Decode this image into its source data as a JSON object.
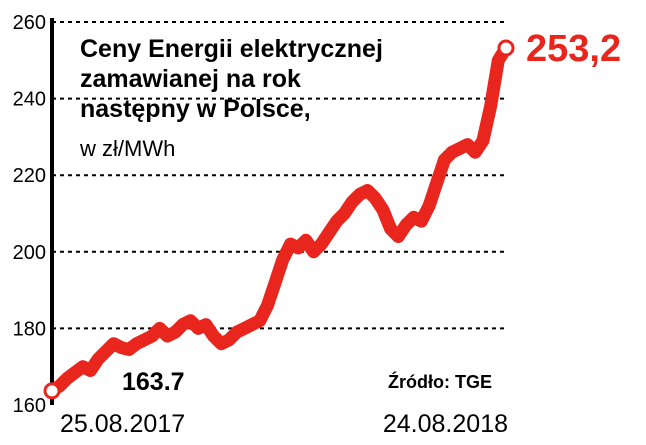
{
  "title_lines": [
    "Ceny Energii elektrycznej",
    "zamawianej na rok",
    "następny w Polsce,"
  ],
  "unit": "w zł/MWh",
  "source": "Źródło: TGE",
  "first_value_label": "163.7",
  "last_value_label": "253,2",
  "colors": {
    "line": "#e8261e",
    "axis": "#000000",
    "grid": "#000000",
    "text": "#000000"
  },
  "chart_data": {
    "type": "line",
    "title": "Ceny Energii elektrycznej zamawianej na rok następny w Polsce, w zł/MWh",
    "xlabel": "",
    "ylabel": "w zł/MWh",
    "ylim": [
      160,
      260
    ],
    "yticks": [
      160,
      180,
      200,
      220,
      240,
      260
    ],
    "xtick_labels": [
      "25.08.2017",
      "24.08.2018"
    ],
    "grid": true,
    "series": [
      {
        "values": [
          163.7,
          165,
          167,
          168.5,
          170,
          169,
          172,
          174,
          176,
          175,
          174.5,
          176,
          177,
          178,
          180,
          178,
          179,
          181,
          182,
          180,
          181,
          178,
          176,
          177,
          179,
          180,
          181,
          182,
          186,
          192,
          198,
          202,
          201,
          203,
          200,
          202,
          205,
          208,
          210,
          213,
          215,
          216,
          214,
          211,
          206,
          204,
          207,
          209,
          208,
          212,
          218,
          224,
          226,
          227,
          228,
          226,
          229,
          238,
          250,
          253.2
        ]
      }
    ]
  }
}
